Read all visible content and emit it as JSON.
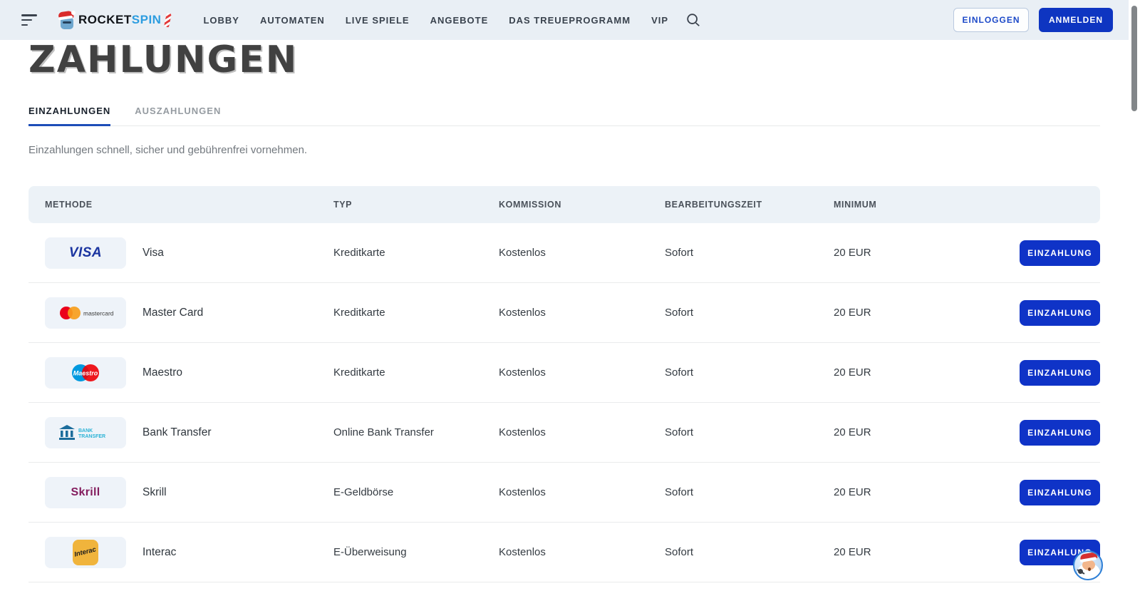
{
  "header": {
    "logo": {
      "word1": "ROCKET",
      "word2": "SPIN"
    },
    "nav_items": [
      {
        "label": "LOBBY"
      },
      {
        "label": "AUTOMATEN"
      },
      {
        "label": "LIVE SPIELE"
      },
      {
        "label": "ANGEBOTE"
      },
      {
        "label": "DAS TREUEPROGRAMM"
      },
      {
        "label": "VIP"
      }
    ],
    "login_label": "EINLOGGEN",
    "signup_label": "ANMELDEN"
  },
  "page": {
    "title": "ZAHLUNGEN",
    "tabs": [
      {
        "label": "EINZAHLUNGEN",
        "active": true
      },
      {
        "label": "AUSZAHLUNGEN",
        "active": false
      }
    ],
    "subtitle": "Einzahlungen schnell, sicher und gebührenfrei vornehmen."
  },
  "table": {
    "columns": [
      "METHODE",
      "TYP",
      "KOMMISSION",
      "BEARBEITUNGSZEIT",
      "MINIMUM"
    ],
    "action_label": "EINZAHLUNG",
    "rows": [
      {
        "logo": "visa",
        "name": "Visa",
        "type": "Kreditkarte",
        "commission": "Kostenlos",
        "processing_time": "Sofort",
        "minimum": "20 EUR"
      },
      {
        "logo": "mastercard",
        "name": "Master Card",
        "type": "Kreditkarte",
        "commission": "Kostenlos",
        "processing_time": "Sofort",
        "minimum": "20 EUR"
      },
      {
        "logo": "maestro",
        "name": "Maestro",
        "type": "Kreditkarte",
        "commission": "Kostenlos",
        "processing_time": "Sofort",
        "minimum": "20 EUR"
      },
      {
        "logo": "bank-transfer",
        "name": "Bank Transfer",
        "type": "Online Bank Transfer",
        "commission": "Kostenlos",
        "processing_time": "Sofort",
        "minimum": "20 EUR"
      },
      {
        "logo": "skrill",
        "name": "Skrill",
        "type": "E-Geldbörse",
        "commission": "Kostenlos",
        "processing_time": "Sofort",
        "minimum": "20 EUR"
      },
      {
        "logo": "interac",
        "name": "Interac",
        "type": "E-Überweisung",
        "commission": "Kostenlos",
        "processing_time": "Sofort",
        "minimum": "20 EUR"
      }
    ],
    "logo_labels": {
      "visa": "VISA",
      "mastercard": "mastercard",
      "maestro": "Maestro",
      "bank_transfer_line1": "BANK",
      "bank_transfer_line2": "TRANSFER",
      "skrill": "Skrill",
      "interac": "Interac"
    }
  },
  "colors": {
    "header_bg": "#e9eff5",
    "primary_blue": "#0f33c7",
    "tab_underline": "#1d4db8",
    "table_header_bg": "#ecf2f7",
    "logo_tile_bg": "#eef3f9",
    "visa_blue": "#1a34a0",
    "mastercard_red": "#eb001b",
    "mastercard_orange": "#f79e1b",
    "maestro_blue": "#0099df",
    "maestro_red": "#ed0006",
    "bank_icon_blue": "#1c6d9c",
    "bank_text_cyan": "#2cb3d6",
    "skrill_magenta": "#831c5d",
    "interac_yellow": "#f0b43c"
  }
}
